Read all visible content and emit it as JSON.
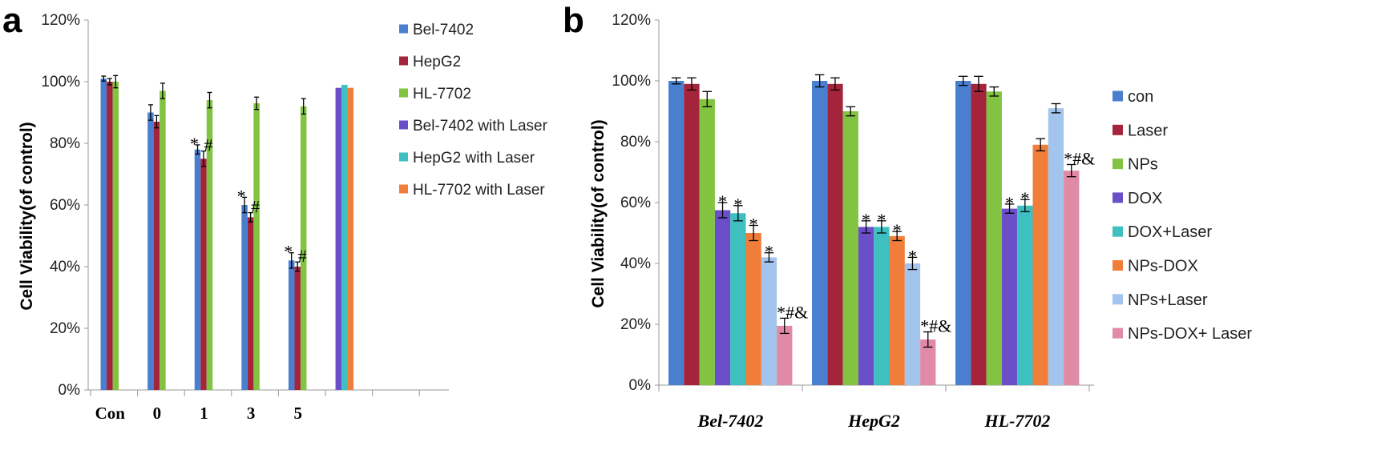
{
  "chart_data": [
    {
      "panel_label": "a",
      "type": "bar",
      "ylabel": "Cell Viability(of control)",
      "ylim": [
        0,
        120
      ],
      "yticks": [
        "0%",
        "20%",
        "40%",
        "60%",
        "80%",
        "100%",
        "120%"
      ],
      "categories": [
        "Con",
        "0",
        "1",
        "3",
        "5",
        "",
        "",
        ""
      ],
      "grid": false,
      "legend_position": "right",
      "series": [
        {
          "name": "Bel-7402",
          "color": "#4a7fd0",
          "values": [
            101,
            90,
            78,
            60,
            42,
            null,
            null,
            null
          ],
          "errors": [
            0.8,
            2.5,
            1.5,
            2.5,
            2.5,
            null,
            null,
            null
          ]
        },
        {
          "name": "HepG2",
          "color": "#a3243b",
          "values": [
            100,
            87,
            75,
            56,
            40,
            null,
            null,
            null
          ],
          "errors": [
            1,
            2,
            2.5,
            1.5,
            1.5,
            null,
            null,
            null
          ]
        },
        {
          "name": "HL-7702",
          "color": "#82c341",
          "values": [
            100,
            97,
            94,
            93,
            92,
            null,
            null,
            null
          ],
          "errors": [
            2,
            2.5,
            2.5,
            2,
            2.5,
            null,
            null,
            null
          ]
        },
        {
          "name": "Bel-7402 with Laser",
          "color": "#6a4fc8",
          "values": [
            null,
            null,
            null,
            null,
            null,
            98,
            null,
            null
          ],
          "errors": []
        },
        {
          "name": "HepG2 with Laser",
          "color": "#3fc0c0",
          "values": [
            null,
            null,
            null,
            null,
            null,
            99,
            null,
            null
          ],
          "errors": []
        },
        {
          "name": "HL-7702 with Laser",
          "color": "#f07e3a",
          "values": [
            null,
            null,
            null,
            null,
            null,
            98,
            null,
            null
          ],
          "errors": []
        }
      ],
      "annotations": [
        {
          "category": "1",
          "series": "Bel-7402",
          "text": "*"
        },
        {
          "category": "1",
          "series": "HepG2",
          "text": "#"
        },
        {
          "category": "3",
          "series": "Bel-7402",
          "text": "*"
        },
        {
          "category": "3",
          "series": "HepG2",
          "text": "#"
        },
        {
          "category": "5",
          "series": "Bel-7402",
          "text": "*"
        },
        {
          "category": "5",
          "series": "HepG2",
          "text": "#"
        }
      ]
    },
    {
      "panel_label": "b",
      "type": "bar",
      "ylabel": "Cell Viability(of control)",
      "ylim": [
        0,
        120
      ],
      "yticks": [
        "0%",
        "20%",
        "40%",
        "60%",
        "80%",
        "100%",
        "120%"
      ],
      "categories": [
        "Bel-7402",
        "HepG2",
        "HL-7702"
      ],
      "grid": false,
      "legend_position": "right",
      "series": [
        {
          "name": "con",
          "color": "#4a7fd0",
          "values": [
            100,
            100,
            100
          ],
          "errors": [
            1,
            2,
            1.5
          ]
        },
        {
          "name": "Laser",
          "color": "#a3243b",
          "values": [
            99,
            99,
            99
          ],
          "errors": [
            2,
            2,
            2.5
          ]
        },
        {
          "name": "NPs",
          "color": "#82c341",
          "values": [
            94,
            90,
            96.5
          ],
          "errors": [
            2.5,
            1.5,
            1.5
          ]
        },
        {
          "name": "DOX",
          "color": "#6a4fc8",
          "values": [
            57.5,
            52,
            58
          ],
          "errors": [
            2.5,
            2,
            1.5
          ]
        },
        {
          "name": "DOX+Laser",
          "color": "#3fc0c0",
          "values": [
            56.5,
            52,
            59
          ],
          "errors": [
            2.5,
            2,
            2
          ]
        },
        {
          "name": "NPs-DOX",
          "color": "#f07e3a",
          "values": [
            50,
            49,
            79
          ],
          "errors": [
            2.5,
            1.5,
            2
          ]
        },
        {
          "name": "NPs+Laser",
          "color": "#a3c4ec",
          "values": [
            42,
            40,
            91
          ],
          "errors": [
            1.5,
            2,
            1.5
          ]
        },
        {
          "name": "NPs-DOX+ Laser",
          "color": "#e08aa6",
          "values": [
            19.5,
            15,
            70.5
          ],
          "errors": [
            2.5,
            2.5,
            2
          ]
        }
      ],
      "annotations": [
        {
          "category": "Bel-7402",
          "series": "DOX",
          "text": "*"
        },
        {
          "category": "Bel-7402",
          "series": "DOX+Laser",
          "text": "*"
        },
        {
          "category": "Bel-7402",
          "series": "NPs-DOX",
          "text": "*"
        },
        {
          "category": "Bel-7402",
          "series": "NPs+Laser",
          "text": "*"
        },
        {
          "category": "Bel-7402",
          "series": "NPs-DOX+ Laser",
          "text": "*#&"
        },
        {
          "category": "HepG2",
          "series": "DOX",
          "text": "*"
        },
        {
          "category": "HepG2",
          "series": "DOX+Laser",
          "text": "*"
        },
        {
          "category": "HepG2",
          "series": "NPs-DOX",
          "text": "*"
        },
        {
          "category": "HepG2",
          "series": "NPs+Laser",
          "text": "*"
        },
        {
          "category": "HepG2",
          "series": "NPs-DOX+ Laser",
          "text": "*#&"
        },
        {
          "category": "HL-7702",
          "series": "DOX",
          "text": "*"
        },
        {
          "category": "HL-7702",
          "series": "DOX+Laser",
          "text": "*"
        },
        {
          "category": "HL-7702",
          "series": "NPs-DOX+ Laser",
          "text": "*#&"
        }
      ]
    }
  ]
}
